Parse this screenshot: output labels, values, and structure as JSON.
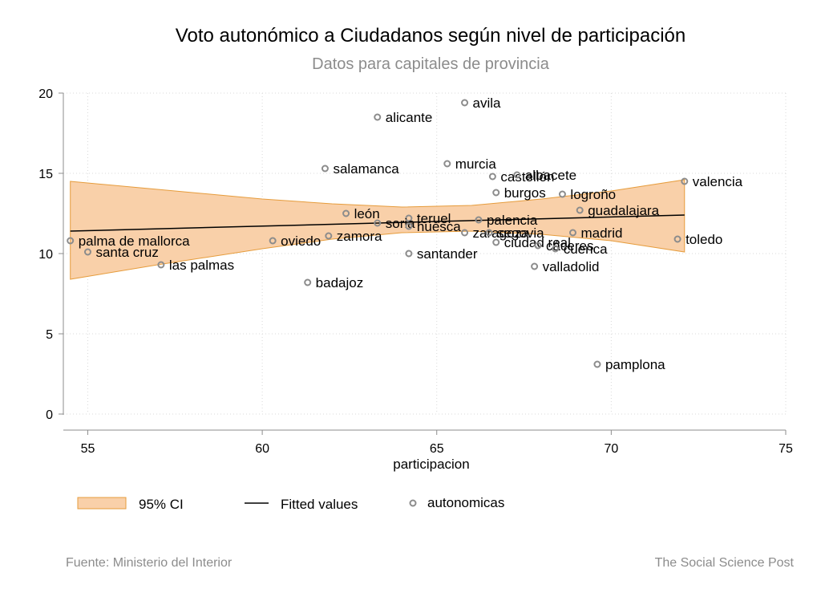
{
  "chart_data": {
    "type": "scatter",
    "title": "Voto autonómico a Ciudadanos según nivel de participación",
    "subtitle": "Datos para capitales de provincia",
    "xlabel": "participacion",
    "ylabel": "",
    "xlim": [
      54.3,
      75
    ],
    "ylim": [
      0,
      20
    ],
    "xticks": [
      55,
      60,
      65,
      70,
      75
    ],
    "yticks": [
      0,
      5,
      10,
      15,
      20
    ],
    "grid": true,
    "legend_position": "bottom",
    "legend": [
      "95% CI",
      "Fitted values",
      "autonomicas"
    ],
    "colors": {
      "ci_fill": "#f9d0a9",
      "ci_stroke": "#e69c3c",
      "fit_line": "#000000",
      "marker": "#8c8c8c"
    },
    "fit": {
      "x": [
        54.5,
        72.1
      ],
      "y": [
        11.4,
        12.4
      ]
    },
    "ci": [
      {
        "x": 54.5,
        "lo": 8.4,
        "hi": 14.5
      },
      {
        "x": 57.0,
        "lo": 9.3,
        "hi": 14.0
      },
      {
        "x": 60.0,
        "lo": 10.3,
        "hi": 13.4
      },
      {
        "x": 62.0,
        "lo": 10.9,
        "hi": 13.1
      },
      {
        "x": 64.0,
        "lo": 11.3,
        "hi": 12.9
      },
      {
        "x": 66.0,
        "lo": 11.4,
        "hi": 13.0
      },
      {
        "x": 68.0,
        "lo": 11.2,
        "hi": 13.4
      },
      {
        "x": 70.0,
        "lo": 10.8,
        "hi": 13.9
      },
      {
        "x": 72.1,
        "lo": 10.1,
        "hi": 14.6
      }
    ],
    "points": [
      {
        "label": "avila",
        "x": 65.8,
        "y": 19.4
      },
      {
        "label": "alicante",
        "x": 63.3,
        "y": 18.5
      },
      {
        "label": "murcia",
        "x": 65.3,
        "y": 15.6
      },
      {
        "label": "salamanca",
        "x": 61.8,
        "y": 15.3
      },
      {
        "label": "castellón",
        "x": 66.6,
        "y": 14.8
      },
      {
        "label": "albacete",
        "x": 67.3,
        "y": 14.9
      },
      {
        "label": "valencia",
        "x": 72.1,
        "y": 14.5
      },
      {
        "label": "burgos",
        "x": 66.7,
        "y": 13.8
      },
      {
        "label": "logroño",
        "x": 68.6,
        "y": 13.7
      },
      {
        "label": "guadalajara",
        "x": 69.1,
        "y": 12.7
      },
      {
        "label": "león",
        "x": 62.4,
        "y": 12.5
      },
      {
        "label": "teruel",
        "x": 64.2,
        "y": 12.2
      },
      {
        "label": "soria",
        "x": 63.3,
        "y": 11.9
      },
      {
        "label": "palencia",
        "x": 66.2,
        "y": 12.1
      },
      {
        "label": "huesca",
        "x": 64.2,
        "y": 11.7
      },
      {
        "label": "zaragoza",
        "x": 65.8,
        "y": 11.3
      },
      {
        "label": "segovia",
        "x": 66.5,
        "y": 11.3
      },
      {
        "label": "madrid",
        "x": 68.9,
        "y": 11.3
      },
      {
        "label": "zamora",
        "x": 61.9,
        "y": 11.1
      },
      {
        "label": "oviedo",
        "x": 60.3,
        "y": 10.8
      },
      {
        "label": "ciudad real",
        "x": 66.7,
        "y": 10.7
      },
      {
        "label": "toledo",
        "x": 71.9,
        "y": 10.9
      },
      {
        "label": "palma de mallorca",
        "x": 54.5,
        "y": 10.8
      },
      {
        "label": "cáceres",
        "x": 67.9,
        "y": 10.5
      },
      {
        "label": "cuenca",
        "x": 68.4,
        "y": 10.3
      },
      {
        "label": "santa cruz",
        "x": 55.0,
        "y": 10.1
      },
      {
        "label": "santander",
        "x": 64.2,
        "y": 10.0
      },
      {
        "label": "las palmas",
        "x": 57.1,
        "y": 9.3
      },
      {
        "label": "valladolid",
        "x": 67.8,
        "y": 9.2
      },
      {
        "label": "badajoz",
        "x": 61.3,
        "y": 8.2
      },
      {
        "label": "pamplona",
        "x": 69.6,
        "y": 3.1
      }
    ]
  },
  "footer": {
    "source": "Fuente: Ministerio del Interior",
    "brand": "The Social Science Post"
  }
}
